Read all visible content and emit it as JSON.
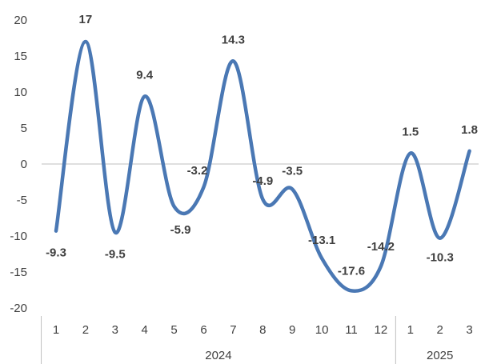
{
  "chart_data": {
    "type": "line",
    "categories": [
      "1",
      "2",
      "3",
      "4",
      "5",
      "6",
      "7",
      "8",
      "9",
      "10",
      "11",
      "12",
      "1",
      "2",
      "3"
    ],
    "groups": [
      {
        "label": "2024",
        "count": 12
      },
      {
        "label": "2025",
        "count": 3
      }
    ],
    "series": [
      {
        "values": [
          -9.3,
          17,
          -9.5,
          9.4,
          -5.9,
          -3.2,
          14.3,
          -4.9,
          -3.5,
          -13.1,
          -17.6,
          -14.2,
          1.5,
          -10.3,
          1.8
        ],
        "labels": [
          "-9.3",
          "17",
          "-9.5",
          "9.4",
          "-5.9",
          "-3.2",
          "14.3",
          "-4.9",
          "-3.5",
          "-13.1",
          "-17.6",
          "-14.2",
          "1.5",
          "-10.3",
          "1.8"
        ],
        "color": "#4a78b4"
      }
    ],
    "yticks": [
      "20",
      "15",
      "10",
      "5",
      "0",
      "-5",
      "-10",
      "-15",
      "-20"
    ],
    "ylim": [
      -20,
      20
    ],
    "smooth": true,
    "grid": false,
    "legend": "none",
    "title": "",
    "xlabel": "",
    "ylabel": ""
  }
}
